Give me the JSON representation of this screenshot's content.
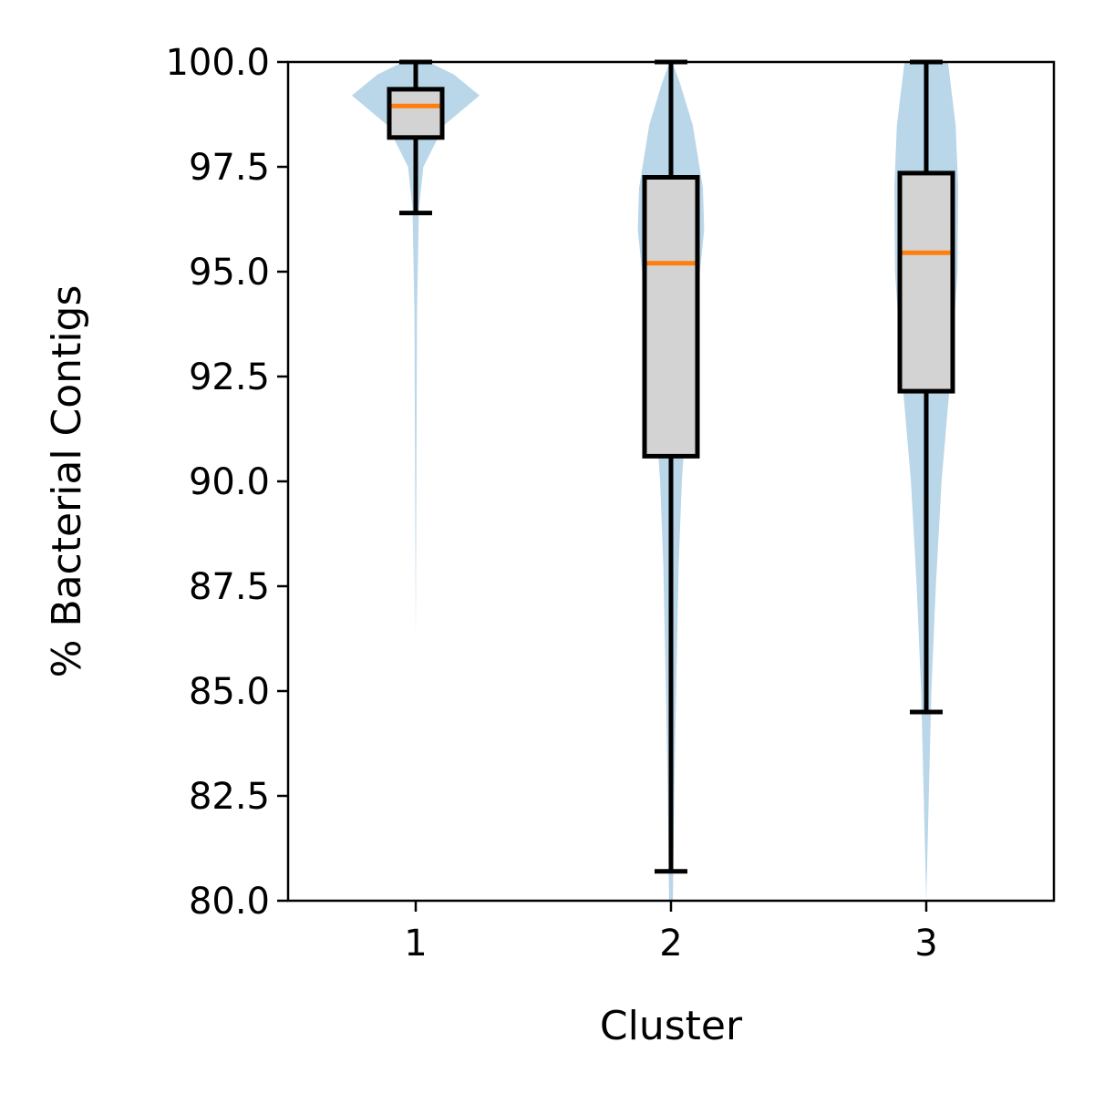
{
  "chart_data": {
    "type": "violin",
    "xlabel": "Cluster",
    "ylabel": "% Bacterial Contigs",
    "ylim": [
      80.0,
      100.0
    ],
    "y_ticks": [
      "80.0",
      "82.5",
      "85.0",
      "87.5",
      "90.0",
      "92.5",
      "95.0",
      "97.5",
      "100.0"
    ],
    "y_tick_values": [
      80.0,
      82.5,
      85.0,
      87.5,
      90.0,
      92.5,
      95.0,
      97.5,
      100.0
    ],
    "categories": [
      "1",
      "2",
      "3"
    ],
    "grid": false,
    "legend": "none",
    "groups": [
      {
        "label": "1",
        "whisker_low": 96.4,
        "q1": 98.2,
        "median": 98.95,
        "q3": 99.35,
        "whisker_high": 100.0,
        "density_profile": [
          [
            86.2,
            0.0
          ],
          [
            90.0,
            0.01
          ],
          [
            94.0,
            0.02
          ],
          [
            96.5,
            0.05
          ],
          [
            97.5,
            0.12
          ],
          [
            98.5,
            0.45
          ],
          [
            99.2,
            1.0
          ],
          [
            99.7,
            0.6
          ],
          [
            100.0,
            0.2
          ]
        ]
      },
      {
        "label": "2",
        "whisker_low": 80.7,
        "q1": 90.6,
        "median": 95.2,
        "q3": 97.25,
        "whisker_high": 100.0,
        "density_profile": [
          [
            80.0,
            0.03
          ],
          [
            82.5,
            0.05
          ],
          [
            85.0,
            0.08
          ],
          [
            88.0,
            0.12
          ],
          [
            90.0,
            0.17
          ],
          [
            92.5,
            0.28
          ],
          [
            94.5,
            0.42
          ],
          [
            96.0,
            0.52
          ],
          [
            97.0,
            0.5
          ],
          [
            98.5,
            0.34
          ],
          [
            99.5,
            0.14
          ],
          [
            100.0,
            0.02
          ]
        ]
      },
      {
        "label": "3",
        "whisker_low": 84.5,
        "q1": 92.15,
        "median": 95.45,
        "q3": 97.35,
        "whisker_high": 100.0,
        "density_profile": [
          [
            80.0,
            0.0
          ],
          [
            82.5,
            0.04
          ],
          [
            85.0,
            0.08
          ],
          [
            87.5,
            0.15
          ],
          [
            90.0,
            0.24
          ],
          [
            92.5,
            0.38
          ],
          [
            95.0,
            0.49
          ],
          [
            97.0,
            0.5
          ],
          [
            98.5,
            0.46
          ],
          [
            100.0,
            0.34
          ]
        ]
      }
    ],
    "colors": {
      "violin_fill": "#bad6e9",
      "box_fill": "#d3d3d3",
      "box_edge": "#000000",
      "median": "#ff7f0e"
    }
  }
}
